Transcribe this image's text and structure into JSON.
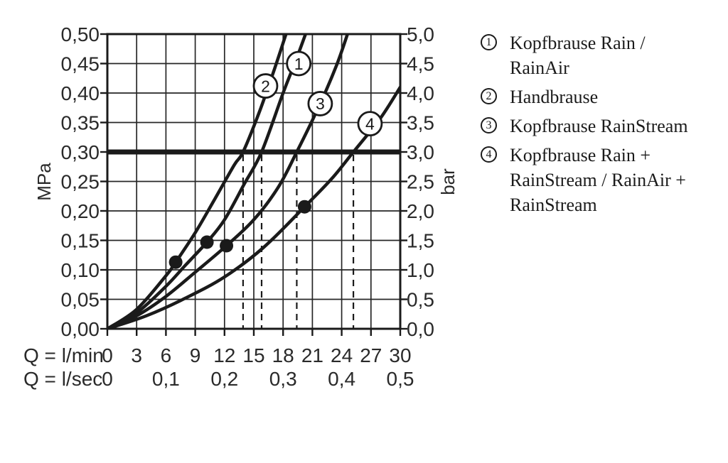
{
  "colors": {
    "ink": "#1a1a1a",
    "grid": "#262626",
    "background": "#ffffff"
  },
  "chart_data": {
    "type": "line",
    "grid": true,
    "x_axis": {
      "row1_label": "Q = l/min",
      "row2_label": "Q = l/sec",
      "range_lmin": [
        0,
        30
      ],
      "ticks_lmin": [
        "0",
        "3",
        "6",
        "9",
        "12",
        "15",
        "18",
        "21",
        "24",
        "27",
        "30"
      ],
      "ticks_lmin_values": [
        0,
        3,
        6,
        9,
        12,
        15,
        18,
        21,
        24,
        27,
        30
      ],
      "ticks_lsec": [
        "0",
        "0,1",
        "0,2",
        "0,3",
        "0,4",
        "0,5"
      ],
      "ticks_lsec_values_lmin": [
        0,
        6,
        12,
        18,
        24,
        30
      ]
    },
    "y_axis_left": {
      "unit": "MPa",
      "range_mpa": [
        0,
        0.5
      ],
      "ticks": [
        "0,00",
        "0,05",
        "0,10",
        "0,15",
        "0,20",
        "0,25",
        "0,30",
        "0,35",
        "0,40",
        "0,45",
        "0,50"
      ],
      "ticks_values": [
        0,
        0.05,
        0.1,
        0.15,
        0.2,
        0.25,
        0.3,
        0.35,
        0.4,
        0.45,
        0.5
      ]
    },
    "y_axis_right": {
      "unit": "bar",
      "range_bar": [
        0,
        5
      ],
      "ticks": [
        "0,0",
        "0,5",
        "1,0",
        "1,5",
        "2,0",
        "2,5",
        "3,0",
        "3,5",
        "4,0",
        "4,5",
        "5,0"
      ],
      "ticks_values": [
        0,
        0.5,
        1.0,
        1.5,
        2.0,
        2.5,
        3.0,
        3.5,
        4.0,
        4.5,
        5.0
      ]
    },
    "reference_line": {
      "mpa": 0.3,
      "bar": 3.0
    },
    "dashed_guides_lmin": [
      13.9,
      15.8,
      19.4,
      25.2
    ],
    "series": [
      {
        "id": "1",
        "name": "Kopfbrause Rain / RainAir",
        "flow_at_3bar_lmin": 15.8,
        "label_pos": {
          "q": 19.6,
          "mpa": 0.45
        },
        "points": [
          [
            0,
            0
          ],
          [
            3,
            0.027
          ],
          [
            6,
            0.072
          ],
          [
            8,
            0.108
          ],
          [
            10.2,
            0.147
          ],
          [
            12,
            0.185
          ],
          [
            14,
            0.245
          ],
          [
            15.8,
            0.3
          ],
          [
            18,
            0.4
          ],
          [
            19.3,
            0.455
          ],
          [
            20.3,
            0.5
          ]
        ]
      },
      {
        "id": "2",
        "name": "Handbrause",
        "flow_at_3bar_lmin": 13.9,
        "label_pos": {
          "q": 16.2,
          "mpa": 0.412
        },
        "points": [
          [
            0,
            0
          ],
          [
            3,
            0.033
          ],
          [
            6,
            0.09
          ],
          [
            7,
            0.113
          ],
          [
            9,
            0.163
          ],
          [
            11,
            0.22
          ],
          [
            13,
            0.278
          ],
          [
            13.9,
            0.3
          ],
          [
            15.5,
            0.365
          ],
          [
            17,
            0.435
          ],
          [
            18.3,
            0.5
          ]
        ]
      },
      {
        "id": "3",
        "name": "Kopfbrause RainStream",
        "flow_at_3bar_lmin": 19.4,
        "label_pos": {
          "q": 21.8,
          "mpa": 0.382
        },
        "points": [
          [
            0,
            0
          ],
          [
            3,
            0.022
          ],
          [
            6,
            0.055
          ],
          [
            9,
            0.096
          ],
          [
            12.2,
            0.141
          ],
          [
            15,
            0.185
          ],
          [
            17.5,
            0.24
          ],
          [
            19.4,
            0.3
          ],
          [
            21.8,
            0.382
          ],
          [
            23.5,
            0.448
          ],
          [
            24.6,
            0.5
          ]
        ]
      },
      {
        "id": "4",
        "name": "Kopfbrause Rain + RainStream / RainAir + RainStream",
        "flow_at_3bar_lmin": 25.2,
        "label_pos": {
          "q": 26.9,
          "mpa": 0.348
        },
        "points": [
          [
            0,
            0
          ],
          [
            4,
            0.022
          ],
          [
            8,
            0.052
          ],
          [
            12,
            0.088
          ],
          [
            16,
            0.138
          ],
          [
            20.2,
            0.207
          ],
          [
            23,
            0.255
          ],
          [
            25.2,
            0.3
          ],
          [
            28,
            0.358
          ],
          [
            30,
            0.41
          ]
        ]
      }
    ],
    "markers": [
      {
        "series": "2",
        "q": 7.0,
        "mpa": 0.113
      },
      {
        "series": "1",
        "q": 10.2,
        "mpa": 0.147
      },
      {
        "series": "3",
        "q": 12.2,
        "mpa": 0.141
      },
      {
        "series": "4",
        "q": 20.2,
        "mpa": 0.207
      }
    ]
  },
  "legend": {
    "items": [
      {
        "number": "1",
        "lines": [
          "Kopfbrause Rain /",
          "RainAir"
        ]
      },
      {
        "number": "2",
        "lines": [
          "Handbrause"
        ]
      },
      {
        "number": "3",
        "lines": [
          "Kopfbrause RainStream"
        ]
      },
      {
        "number": "4",
        "lines": [
          "Kopfbrause Rain +",
          "RainStream / RainAir +",
          "RainStream"
        ]
      }
    ]
  }
}
